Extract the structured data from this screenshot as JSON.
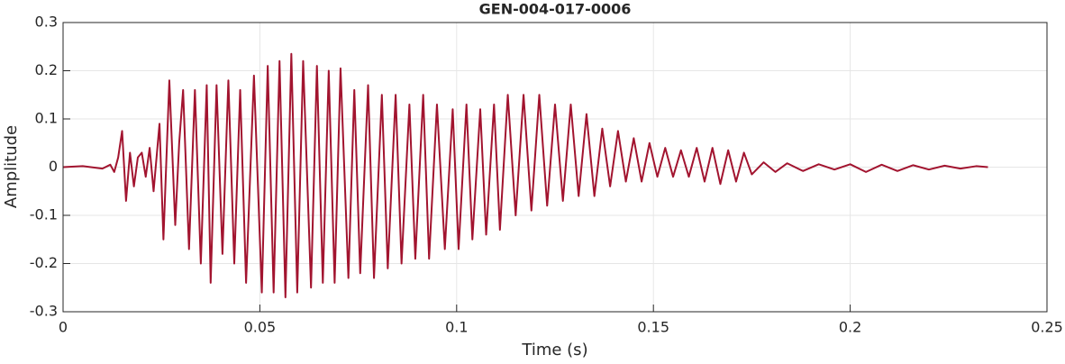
{
  "chart_data": {
    "type": "line",
    "title": "GEN-004-017-0006",
    "xlabel": "Time (s)",
    "ylabel": "Amplitude",
    "xlim": [
      0,
      0.25
    ],
    "ylim": [
      -0.3,
      0.3
    ],
    "xticks": [
      0,
      0.05,
      0.1,
      0.15,
      0.2,
      0.25
    ],
    "yticks": [
      -0.3,
      -0.2,
      -0.1,
      0,
      0.1,
      0.2,
      0.3
    ],
    "grid": true,
    "series": [
      {
        "color": "#a2142f",
        "x": [
          0,
          0.005,
          0.01,
          0.012,
          0.013,
          0.014,
          0.015,
          0.016,
          0.017,
          0.018,
          0.019,
          0.02,
          0.021,
          0.022,
          0.023,
          0.0245,
          0.0255,
          0.027,
          0.0285,
          0.0295,
          0.0305,
          0.032,
          0.0335,
          0.035,
          0.0365,
          0.0375,
          0.039,
          0.0405,
          0.042,
          0.0435,
          0.045,
          0.0465,
          0.0485,
          0.0505,
          0.052,
          0.0535,
          0.055,
          0.0565,
          0.058,
          0.0595,
          0.061,
          0.063,
          0.0645,
          0.066,
          0.0675,
          0.069,
          0.0705,
          0.0725,
          0.074,
          0.0755,
          0.0775,
          0.079,
          0.081,
          0.0825,
          0.0845,
          0.086,
          0.088,
          0.0895,
          0.0915,
          0.093,
          0.095,
          0.097,
          0.099,
          0.1005,
          0.1025,
          0.104,
          0.106,
          0.1075,
          0.1095,
          0.111,
          0.113,
          0.115,
          0.117,
          0.119,
          0.121,
          0.123,
          0.125,
          0.127,
          0.129,
          0.131,
          0.133,
          0.135,
          0.137,
          0.139,
          0.141,
          0.143,
          0.145,
          0.147,
          0.149,
          0.151,
          0.153,
          0.155,
          0.157,
          0.159,
          0.161,
          0.163,
          0.165,
          0.167,
          0.169,
          0.171,
          0.173,
          0.175,
          0.178,
          0.181,
          0.184,
          0.188,
          0.192,
          0.196,
          0.2,
          0.204,
          0.208,
          0.212,
          0.216,
          0.22,
          0.224,
          0.228,
          0.232,
          0.235
        ],
        "values": [
          0,
          0.002,
          -0.003,
          0.005,
          -0.01,
          0.02,
          0.075,
          -0.07,
          0.03,
          -0.04,
          0.02,
          0.03,
          -0.02,
          0.04,
          -0.05,
          0.09,
          -0.15,
          0.18,
          -0.12,
          0.05,
          0.16,
          -0.17,
          0.16,
          -0.2,
          0.17,
          -0.24,
          0.17,
          -0.18,
          0.18,
          -0.2,
          0.16,
          -0.24,
          0.19,
          -0.26,
          0.21,
          -0.26,
          0.22,
          -0.27,
          0.235,
          -0.26,
          0.22,
          -0.25,
          0.21,
          -0.24,
          0.2,
          -0.24,
          0.205,
          -0.23,
          0.16,
          -0.22,
          0.17,
          -0.23,
          0.15,
          -0.21,
          0.15,
          -0.2,
          0.13,
          -0.19,
          0.15,
          -0.19,
          0.13,
          -0.17,
          0.12,
          -0.17,
          0.13,
          -0.15,
          0.12,
          -0.14,
          0.13,
          -0.13,
          0.15,
          -0.1,
          0.15,
          -0.09,
          0.15,
          -0.08,
          0.13,
          -0.07,
          0.13,
          -0.06,
          0.11,
          -0.06,
          0.08,
          -0.04,
          0.075,
          -0.03,
          0.06,
          -0.03,
          0.05,
          -0.02,
          0.04,
          -0.02,
          0.035,
          -0.02,
          0.04,
          -0.03,
          0.04,
          -0.035,
          0.035,
          -0.03,
          0.03,
          -0.015,
          0.01,
          -0.01,
          0.008,
          -0.008,
          0.006,
          -0.005,
          0.006,
          -0.01,
          0.005,
          -0.008,
          0.004,
          -0.005,
          0.003,
          -0.003,
          0.002,
          0
        ]
      }
    ]
  }
}
